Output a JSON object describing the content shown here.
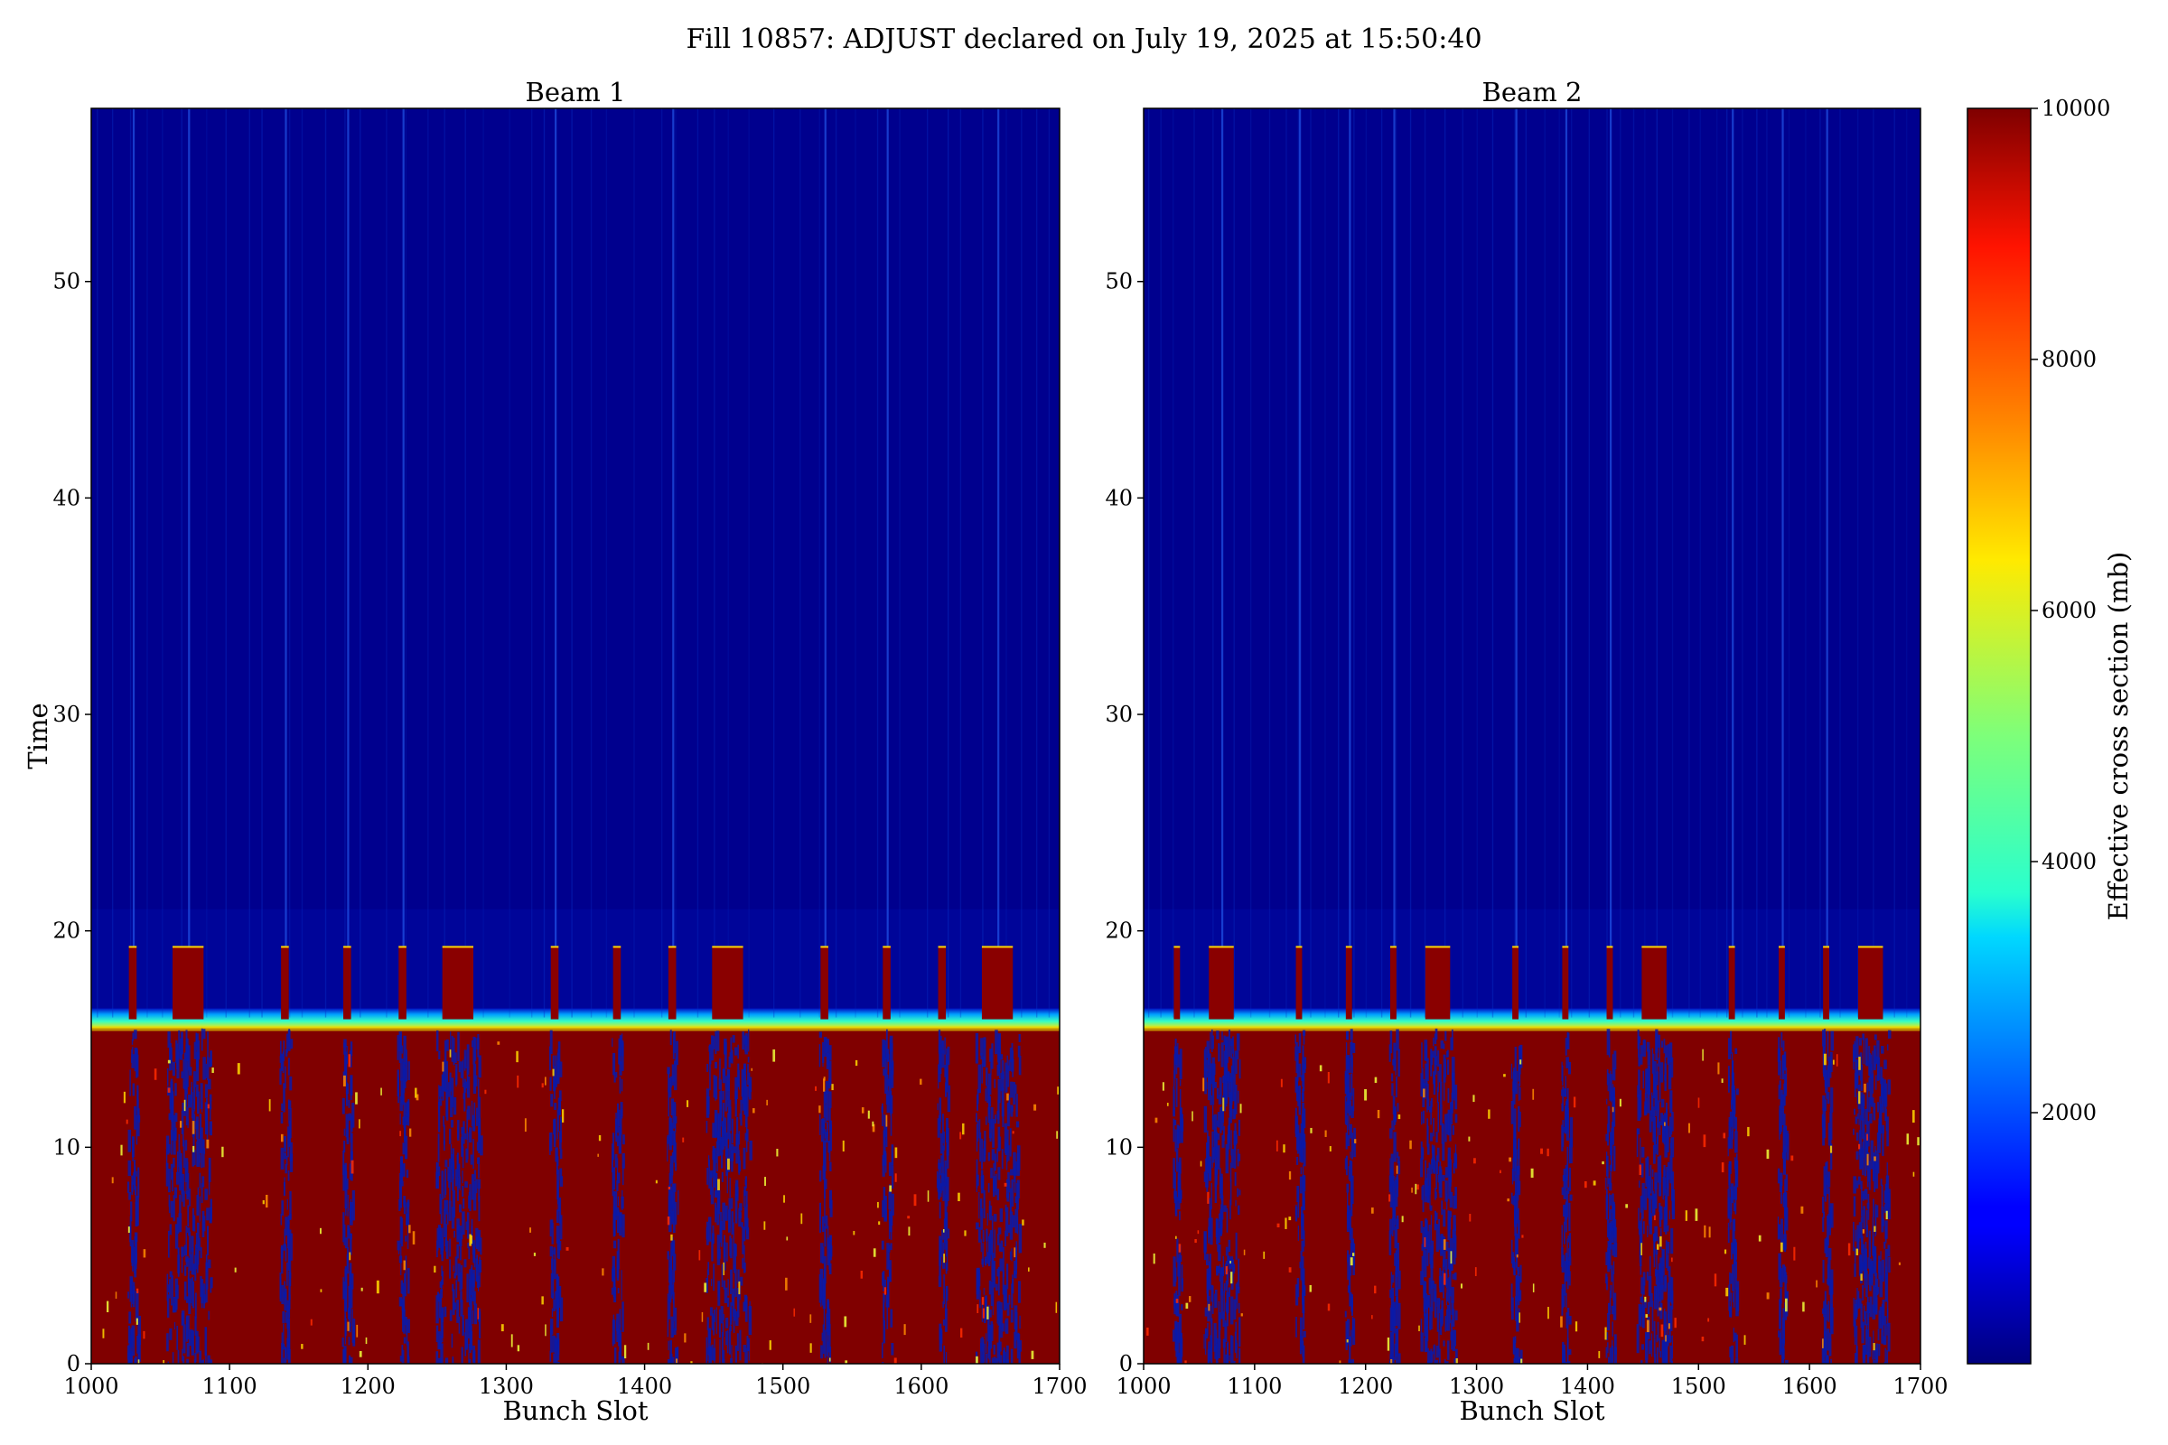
{
  "figure": {
    "suptitle": "Fill 10857: ADJUST declared on July 19, 2025 at 15:50:40"
  },
  "chart_data": [
    {
      "type": "heatmap",
      "title": "Beam 1",
      "xlabel": "Bunch Slot",
      "ylabel": "Time",
      "xlim": [
        1000,
        1700
      ],
      "ylim": [
        0,
        58
      ],
      "xticks": [
        1000,
        1100,
        1200,
        1300,
        1400,
        1500,
        1600,
        1700
      ],
      "yticks": [
        0,
        10,
        20,
        30,
        40,
        50
      ],
      "transition_time": 16,
      "high_value": 10000,
      "low_value": 200,
      "train_starts": [
        1030,
        1070,
        1140,
        1185,
        1225,
        1265,
        1335,
        1380,
        1420,
        1460,
        1530,
        1575,
        1615,
        1655
      ],
      "bright_columns": [
        1030,
        1070,
        1140,
        1185,
        1225,
        1335,
        1420,
        1530,
        1575,
        1655
      ]
    },
    {
      "type": "heatmap",
      "title": "Beam 2",
      "xlabel": "Bunch Slot",
      "ylabel": "",
      "xlim": [
        1000,
        1700
      ],
      "ylim": [
        0,
        58
      ],
      "xticks": [
        1000,
        1100,
        1200,
        1300,
        1400,
        1500,
        1600,
        1700
      ],
      "yticks": [
        0,
        10,
        20,
        30,
        40,
        50
      ],
      "transition_time": 16,
      "high_value": 10000,
      "low_value": 200,
      "train_starts": [
        1030,
        1070,
        1140,
        1185,
        1225,
        1265,
        1335,
        1380,
        1420,
        1460,
        1530,
        1575,
        1615,
        1655
      ],
      "bright_columns": [
        1070,
        1140,
        1185,
        1225,
        1335,
        1380,
        1420,
        1530,
        1575,
        1615
      ]
    }
  ],
  "colorbar": {
    "label": "Effective cross section (mb)",
    "min": 0,
    "max": 10000,
    "ticks": [
      2000,
      4000,
      6000,
      8000,
      10000
    ],
    "colormap": "jet"
  }
}
